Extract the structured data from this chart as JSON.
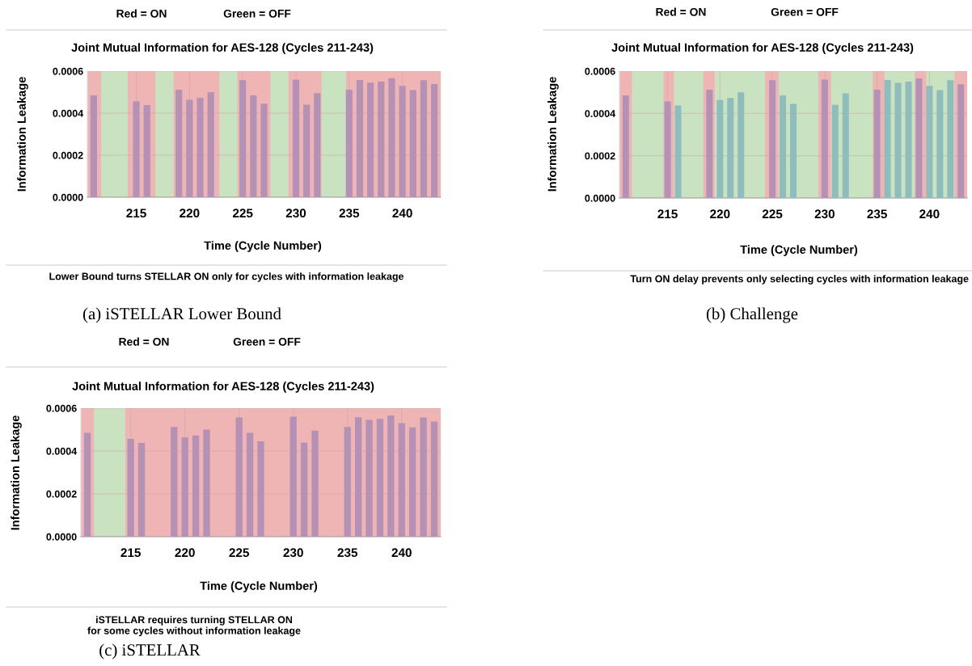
{
  "chart_data": [
    {
      "type": "bar",
      "title": "Joint Mutual Information for AES-128 (Cycles 211-243)",
      "xlabel": "Time (Cycle Number)",
      "ylabel": "Information Leakage",
      "x": [
        211,
        212,
        213,
        214,
        215,
        216,
        217,
        218,
        219,
        220,
        221,
        222,
        223,
        224,
        225,
        226,
        227,
        228,
        229,
        230,
        231,
        232,
        233,
        234,
        235,
        236,
        237,
        238,
        239,
        240,
        241,
        242,
        243
      ],
      "values": [
        0.000485,
        null,
        null,
        null,
        0.000457,
        0.000438,
        null,
        null,
        0.000512,
        0.000463,
        0.000473,
        0.0005,
        null,
        null,
        0.000557,
        0.000485,
        0.000445,
        null,
        null,
        0.00056,
        0.00044,
        0.000495,
        null,
        null,
        0.000512,
        0.000558,
        0.000545,
        0.00055,
        0.000566,
        0.00053,
        0.00051,
        0.000557,
        0.000538
      ],
      "color": "#b491b5",
      "xlim": [
        210.4,
        243.6
      ],
      "ylim": [
        0,
        0.0006
      ],
      "xticks": [
        215,
        220,
        225,
        230,
        235,
        240
      ],
      "yticks": [
        {
          "value": 0,
          "label": "0.0000"
        },
        {
          "value": 0.0002,
          "label": "0.0002"
        },
        {
          "value": 0.0004,
          "label": "0.0004"
        },
        {
          "value": 0.0006,
          "label": "0.0006"
        }
      ],
      "grid": true,
      "bands": [
        {
          "axis": "x",
          "from": 210.4,
          "to": 243.6,
          "color": "#efb4b4"
        },
        {
          "axis": "x",
          "from": 211.7,
          "to": 214.2,
          "color": "#c9e2c0"
        },
        {
          "axis": "x",
          "from": 216.8,
          "to": 218.5,
          "color": "#c9e2c0"
        },
        {
          "axis": "x",
          "from": 222.8,
          "to": 224.5,
          "color": "#c9e2c0"
        },
        {
          "axis": "x",
          "from": 227.6,
          "to": 229.3,
          "color": "#c9e2c0"
        },
        {
          "axis": "x",
          "from": 232.4,
          "to": 234.7,
          "color": "#c9e2c0"
        }
      ],
      "annotations": [
        "Red = ON",
        "Green = OFF",
        "Lower Bound turns STELLAR ON only for cycles with information leakage",
        "(a) iSTELLAR Lower Bound"
      ]
    },
    {
      "type": "bar",
      "title": "Joint Mutual Information for AES-128 (Cycles 211-243)",
      "xlabel": "Time (Cycle Number)",
      "ylabel": "Information Leakage",
      "x": [
        211,
        212,
        213,
        214,
        215,
        216,
        217,
        218,
        219,
        220,
        221,
        222,
        223,
        224,
        225,
        226,
        227,
        228,
        229,
        230,
        231,
        232,
        233,
        234,
        235,
        236,
        237,
        238,
        239,
        240,
        241,
        242,
        243
      ],
      "values": [
        0.000485,
        null,
        null,
        null,
        0.000457,
        0.000438,
        null,
        null,
        0.000512,
        0.000463,
        0.000473,
        0.0005,
        null,
        null,
        0.000557,
        0.000485,
        0.000445,
        null,
        null,
        0.00056,
        0.00044,
        0.000495,
        null,
        null,
        0.000512,
        0.000558,
        0.000545,
        0.00055,
        0.000566,
        0.00053,
        0.00051,
        0.000557,
        0.000538
      ],
      "colors": [
        "#b491b5",
        null,
        null,
        null,
        "#b491b5",
        "#8fbdbd",
        null,
        null,
        "#b491b5",
        "#8fbdbd",
        "#8fbdbd",
        "#8fbdbd",
        null,
        null,
        "#b491b5",
        "#8fbdbd",
        "#8fbdbd",
        null,
        null,
        "#b491b5",
        "#8fbdbd",
        "#8fbdbd",
        null,
        null,
        "#b491b5",
        "#8fbdbd",
        "#8fbdbd",
        "#8fbdbd",
        "#b491b5",
        "#8fbdbd",
        "#8fbdbd",
        "#8fbdbd",
        "#b491b5"
      ],
      "xlim": [
        210.4,
        243.6
      ],
      "ylim": [
        0,
        0.0006
      ],
      "xticks": [
        215,
        220,
        225,
        230,
        235,
        240
      ],
      "yticks": [
        {
          "value": 0,
          "label": "0.0000"
        },
        {
          "value": 0.0002,
          "label": "0.0002"
        },
        {
          "value": 0.0004,
          "label": "0.0004"
        },
        {
          "value": 0.0006,
          "label": "0.0006"
        }
      ],
      "grid": true,
      "bands": [
        {
          "axis": "x",
          "from": 210.4,
          "to": 243.6,
          "color": "#efb4b4"
        },
        {
          "axis": "x",
          "from": 211.6,
          "to": 214.6,
          "color": "#c9e2c0"
        },
        {
          "axis": "x",
          "from": 215.6,
          "to": 218.4,
          "color": "#c9e2c0"
        },
        {
          "axis": "x",
          "from": 219.5,
          "to": 224.3,
          "color": "#c9e2c0"
        },
        {
          "axis": "x",
          "from": 225.6,
          "to": 229.4,
          "color": "#c9e2c0"
        },
        {
          "axis": "x",
          "from": 230.6,
          "to": 234.6,
          "color": "#c9e2c0"
        },
        {
          "axis": "x",
          "from": 235.7,
          "to": 238.6,
          "color": "#c9e2c0"
        },
        {
          "axis": "x",
          "from": 239.7,
          "to": 242.4,
          "color": "#c9e2c0"
        }
      ],
      "annotations": [
        "Red = ON",
        "Green = OFF",
        "Turn ON delay prevents only selecting cycles with information leakage",
        "(b) Challenge"
      ]
    },
    {
      "type": "bar",
      "title": "Joint Mutual Information for AES-128 (Cycles 211-243)",
      "xlabel": "Time (Cycle Number)",
      "ylabel": "Information Leakage",
      "x": [
        211,
        212,
        213,
        214,
        215,
        216,
        217,
        218,
        219,
        220,
        221,
        222,
        223,
        224,
        225,
        226,
        227,
        228,
        229,
        230,
        231,
        232,
        233,
        234,
        235,
        236,
        237,
        238,
        239,
        240,
        241,
        242,
        243
      ],
      "values": [
        0.000485,
        null,
        null,
        null,
        0.000457,
        0.000438,
        null,
        null,
        0.000512,
        0.000463,
        0.000473,
        0.0005,
        null,
        null,
        0.000557,
        0.000485,
        0.000445,
        null,
        null,
        0.00056,
        0.00044,
        0.000495,
        null,
        null,
        0.000512,
        0.000558,
        0.000545,
        0.00055,
        0.000566,
        0.00053,
        0.00051,
        0.000557,
        0.000538
      ],
      "color": "#b491b5",
      "xlim": [
        210.4,
        243.6
      ],
      "ylim": [
        0,
        0.0006
      ],
      "xticks": [
        215,
        220,
        225,
        230,
        235,
        240
      ],
      "yticks": [
        {
          "value": 0,
          "label": "0.0000"
        },
        {
          "value": 0.0002,
          "label": "0.0002"
        },
        {
          "value": 0.0004,
          "label": "0.0004"
        },
        {
          "value": 0.0006,
          "label": "0.0006"
        }
      ],
      "grid": true,
      "bands": [
        {
          "axis": "x",
          "from": 210.4,
          "to": 243.6,
          "color": "#efb4b4"
        },
        {
          "axis": "x",
          "from": 211.6,
          "to": 214.5,
          "color": "#c9e2c0"
        }
      ],
      "annotations": [
        "Red = ON",
        "Green = OFF",
        "iSTELLAR requires turning STELLAR ON\nfor some cycles without information leakage",
        "(c) iSTELLAR"
      ]
    }
  ]
}
